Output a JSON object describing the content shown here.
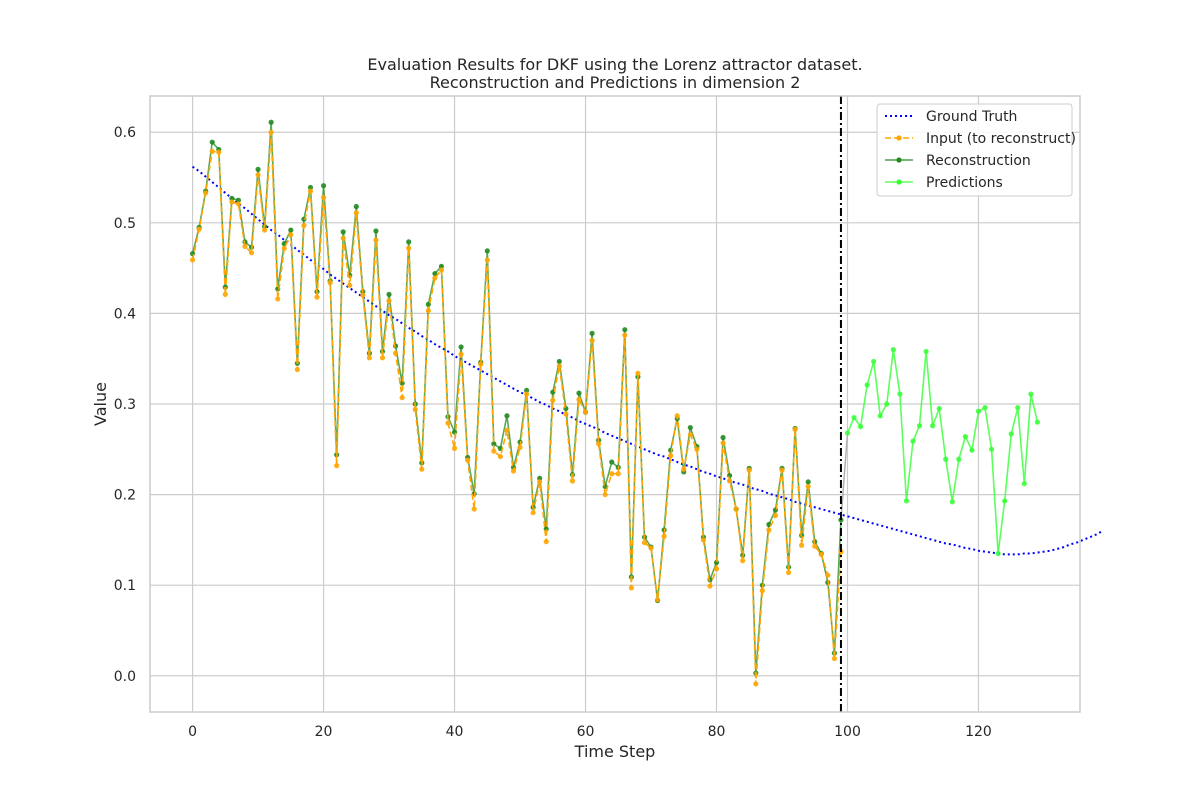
{
  "chart_data": {
    "type": "line",
    "title": "Evaluation Results for DKF using the Lorenz attractor dataset.",
    "subtitle": "Reconstruction and Predictions in dimension 2",
    "xlabel": "Time Step",
    "ylabel": "Value",
    "xlim": [
      -6.5,
      135.5
    ],
    "ylim": [
      -0.04,
      0.64
    ],
    "xticks": [
      0,
      20,
      40,
      60,
      80,
      100,
      120
    ],
    "yticks": [
      0.0,
      0.1,
      0.2,
      0.3,
      0.4,
      0.5,
      0.6
    ],
    "grid": true,
    "legend_position": "top-right",
    "vertical_line_x": 99,
    "colors": {
      "ground_truth": "#0000ff",
      "input": "#ffa500",
      "reconstruction": "#228b22",
      "predictions": "#33ff33",
      "vline": "#000000"
    },
    "series": [
      {
        "name": "Ground Truth",
        "style": "dotted",
        "x_start": 0,
        "values": [
          0.562,
          0.557,
          0.551,
          0.545,
          0.539,
          0.533,
          0.527,
          0.521,
          0.516,
          0.51,
          0.504,
          0.498,
          0.492,
          0.487,
          0.481,
          0.476,
          0.47,
          0.465,
          0.459,
          0.454,
          0.449,
          0.443,
          0.438,
          0.433,
          0.428,
          0.423,
          0.418,
          0.413,
          0.408,
          0.403,
          0.398,
          0.394,
          0.389,
          0.384,
          0.38,
          0.375,
          0.371,
          0.366,
          0.362,
          0.358,
          0.353,
          0.349,
          0.345,
          0.341,
          0.337,
          0.333,
          0.329,
          0.325,
          0.321,
          0.317,
          0.313,
          0.31,
          0.306,
          0.302,
          0.299,
          0.295,
          0.292,
          0.288,
          0.285,
          0.281,
          0.278,
          0.275,
          0.272,
          0.268,
          0.265,
          0.262,
          0.259,
          0.256,
          0.253,
          0.25,
          0.247,
          0.244,
          0.242,
          0.239,
          0.236,
          0.233,
          0.231,
          0.228,
          0.225,
          0.223,
          0.22,
          0.218,
          0.215,
          0.213,
          0.211,
          0.208,
          0.206,
          0.204,
          0.201,
          0.199,
          0.197,
          0.195,
          0.192,
          0.19,
          0.188,
          0.186,
          0.184,
          0.182,
          0.18,
          0.178,
          0.176,
          0.174,
          0.172,
          0.17,
          0.168,
          0.166,
          0.164,
          0.162,
          0.16,
          0.158,
          0.156,
          0.154,
          0.152,
          0.15,
          0.148,
          0.146,
          0.145,
          0.143,
          0.141,
          0.14,
          0.138,
          0.137,
          0.136,
          0.135,
          0.134,
          0.134,
          0.134,
          0.135,
          0.135,
          0.136,
          0.137,
          0.138,
          0.14,
          0.142,
          0.145,
          0.147,
          0.15,
          0.153,
          0.156,
          0.16
        ]
      },
      {
        "name": "Input (to reconstruct)",
        "style": "dashed-markers",
        "x_start": 0,
        "values": [
          0.459,
          0.493,
          0.533,
          0.579,
          0.578,
          0.421,
          0.523,
          0.521,
          0.474,
          0.467,
          0.553,
          0.492,
          0.6,
          0.416,
          0.472,
          0.487,
          0.338,
          0.497,
          0.535,
          0.418,
          0.528,
          0.434,
          0.232,
          0.483,
          0.431,
          0.511,
          0.42,
          0.351,
          0.481,
          0.351,
          0.414,
          0.356,
          0.307,
          0.472,
          0.294,
          0.228,
          0.403,
          0.439,
          0.448,
          0.279,
          0.251,
          0.355,
          0.238,
          0.184,
          0.344,
          0.459,
          0.248,
          0.242,
          0.271,
          0.226,
          0.252,
          0.311,
          0.18,
          0.214,
          0.148,
          0.304,
          0.342,
          0.289,
          0.215,
          0.305,
          0.291,
          0.37,
          0.256,
          0.2,
          0.223,
          0.223,
          0.376,
          0.097,
          0.334,
          0.147,
          0.141,
          0.084,
          0.154,
          0.243,
          0.287,
          0.228,
          0.266,
          0.25,
          0.15,
          0.099,
          0.118,
          0.257,
          0.215,
          0.184,
          0.127,
          0.227,
          -0.009,
          0.094,
          0.161,
          0.177,
          0.227,
          0.114,
          0.272,
          0.144,
          0.209,
          0.143,
          0.134,
          0.111,
          0.019,
          0.137
        ]
      },
      {
        "name": "Reconstruction",
        "style": "solid-markers",
        "x_start": 0,
        "values": [
          0.466,
          0.495,
          0.535,
          0.589,
          0.581,
          0.429,
          0.527,
          0.525,
          0.479,
          0.473,
          0.559,
          0.496,
          0.611,
          0.427,
          0.477,
          0.492,
          0.345,
          0.504,
          0.539,
          0.424,
          0.541,
          0.436,
          0.244,
          0.49,
          0.442,
          0.518,
          0.424,
          0.356,
          0.491,
          0.358,
          0.421,
          0.364,
          0.323,
          0.479,
          0.3,
          0.235,
          0.41,
          0.444,
          0.452,
          0.286,
          0.269,
          0.363,
          0.241,
          0.201,
          0.346,
          0.469,
          0.256,
          0.251,
          0.287,
          0.23,
          0.258,
          0.315,
          0.186,
          0.218,
          0.162,
          0.313,
          0.347,
          0.295,
          0.222,
          0.312,
          0.291,
          0.378,
          0.26,
          0.209,
          0.236,
          0.23,
          0.382,
          0.109,
          0.33,
          0.153,
          0.142,
          0.083,
          0.161,
          0.249,
          0.284,
          0.225,
          0.274,
          0.253,
          0.153,
          0.106,
          0.125,
          0.263,
          0.221,
          0.184,
          0.133,
          0.229,
          0.003,
          0.1,
          0.167,
          0.183,
          0.229,
          0.12,
          0.273,
          0.155,
          0.214,
          0.148,
          0.135,
          0.103,
          0.025,
          0.172
        ]
      },
      {
        "name": "Predictions",
        "style": "solid-markers",
        "x_start": 100,
        "values": [
          0.268,
          0.285,
          0.275,
          0.321,
          0.347,
          0.287,
          0.3,
          0.36,
          0.311,
          0.193,
          0.259,
          0.276,
          0.358,
          0.276,
          0.295,
          0.239,
          0.192,
          0.239,
          0.264,
          0.249,
          0.292,
          0.296,
          0.25,
          0.135,
          0.193,
          0.267,
          0.296,
          0.212,
          0.311,
          0.28
        ]
      }
    ]
  }
}
